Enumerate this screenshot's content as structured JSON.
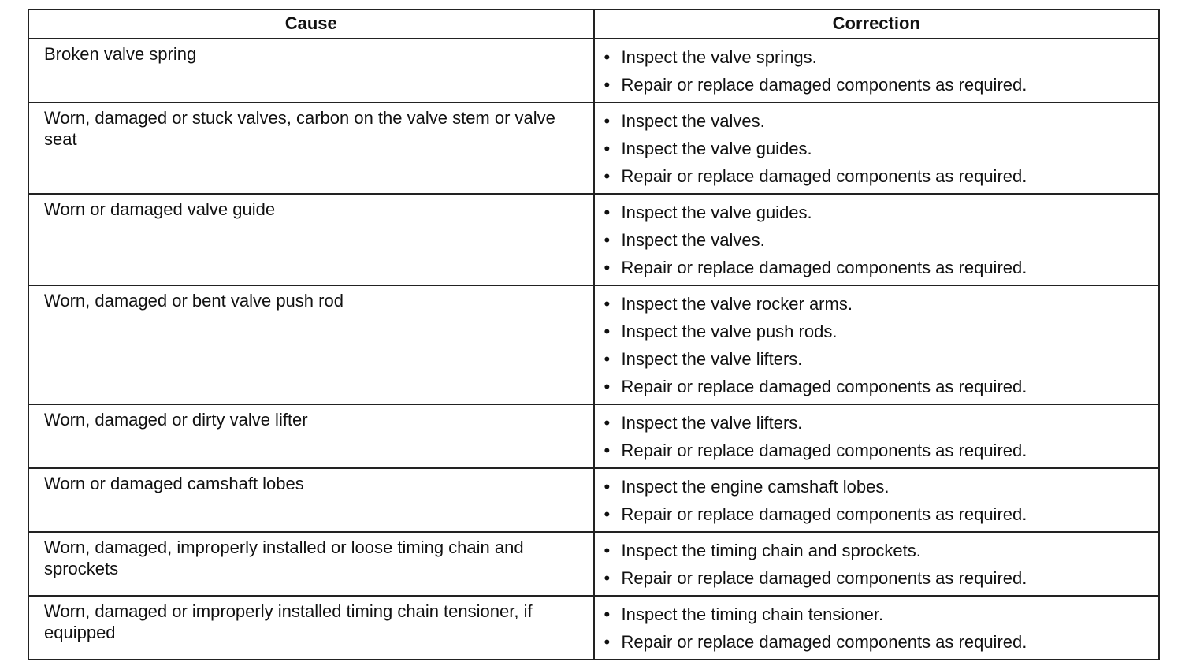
{
  "table": {
    "header": [
      "Cause",
      "Correction"
    ],
    "rows": [
      {
        "cause": "Broken valve spring",
        "corrections": [
          "Inspect the valve springs.",
          "Repair or replace damaged components as required."
        ]
      },
      {
        "cause": "Worn, damaged or stuck valves, carbon on the valve stem or valve seat",
        "corrections": [
          "Inspect the valves.",
          "Inspect the valve guides.",
          "Repair or replace damaged components as required."
        ]
      },
      {
        "cause": "Worn or damaged valve guide",
        "corrections": [
          "Inspect the valve guides.",
          "Inspect the valves.",
          "Repair or replace damaged components as required."
        ]
      },
      {
        "cause": "Worn, damaged or bent valve push rod",
        "corrections": [
          "Inspect the valve rocker arms.",
          "Inspect the valve push rods.",
          "Inspect the valve lifters.",
          "Repair or replace damaged components as required."
        ]
      },
      {
        "cause": "Worn, damaged or dirty valve lifter",
        "corrections": [
          "Inspect the valve lifters.",
          "Repair or replace damaged components as required."
        ]
      },
      {
        "cause": "Worn or damaged camshaft lobes",
        "corrections": [
          "Inspect the engine camshaft lobes.",
          "Repair or replace damaged components as required."
        ]
      },
      {
        "cause": "Worn, damaged, improperly installed or loose timing chain and sprockets",
        "corrections": [
          "Inspect the timing chain and sprockets.",
          "Repair or replace damaged components as required."
        ]
      },
      {
        "cause": "Worn, damaged or improperly installed timing chain tensioner, if equipped",
        "corrections": [
          "Inspect the timing chain tensioner.",
          "Repair or replace damaged components as required."
        ]
      }
    ]
  }
}
